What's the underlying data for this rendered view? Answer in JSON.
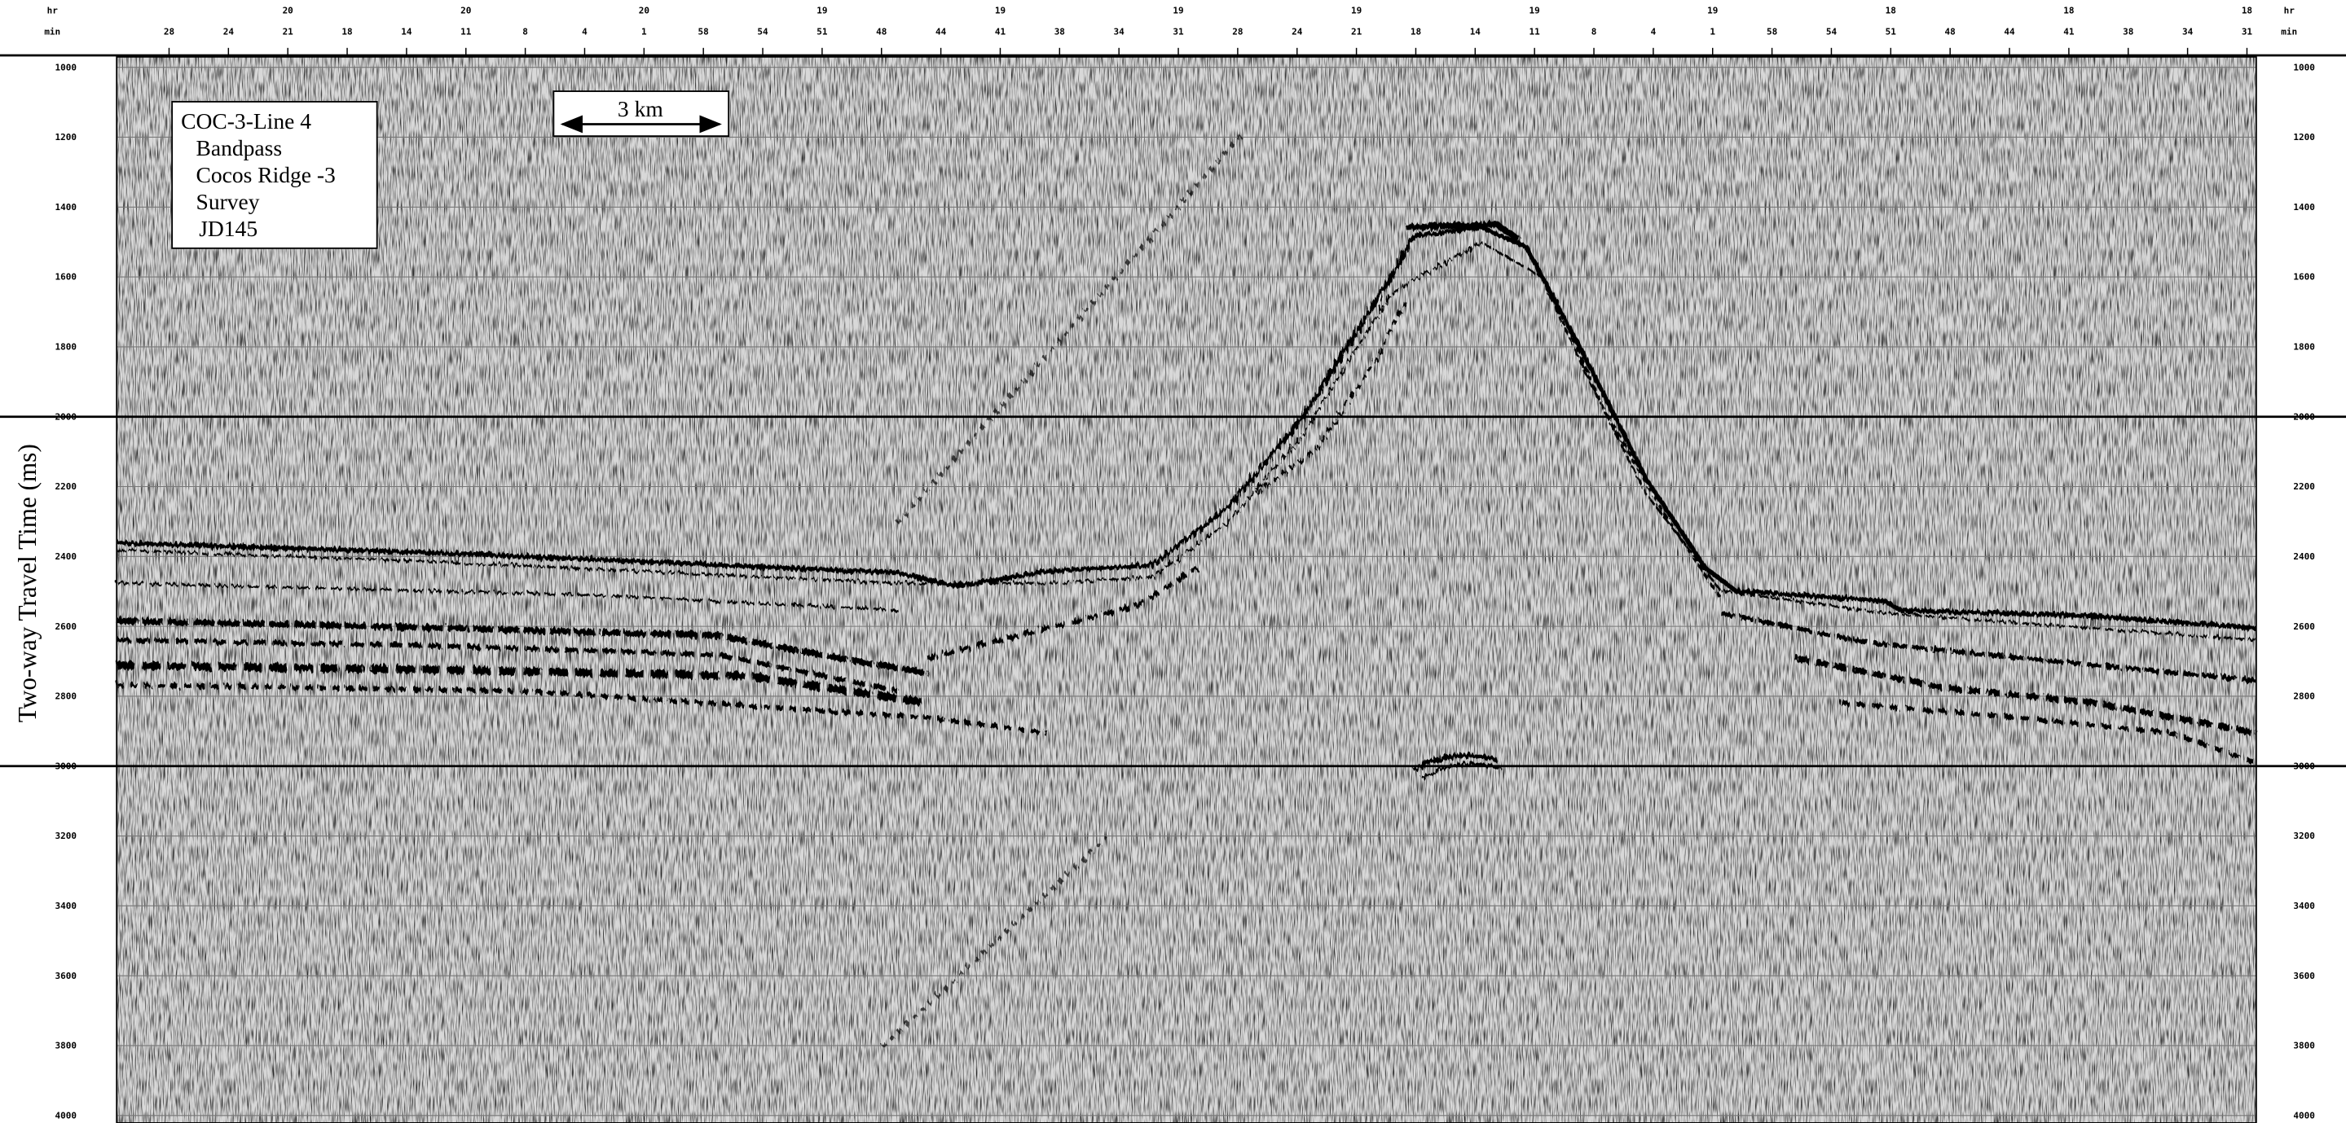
{
  "top_axis": {
    "hour_label": "hr",
    "minute_label": "min",
    "hours": [
      20,
      20,
      20,
      19,
      19,
      19,
      19,
      19,
      19,
      18,
      18,
      18
    ],
    "minutes": [
      28,
      24,
      21,
      18,
      14,
      11,
      8,
      4,
      1,
      58,
      54,
      51,
      48,
      44,
      41,
      38,
      34,
      31,
      28,
      24,
      21,
      18,
      14,
      11,
      8,
      4,
      1,
      58,
      54,
      51,
      48,
      44,
      41,
      38,
      34,
      31
    ]
  },
  "y_axis": {
    "label": "Two-way Travel Time (ms)",
    "ticks": [
      1000,
      1200,
      1400,
      1600,
      1800,
      2000,
      2200,
      2400,
      2600,
      2800,
      3000,
      3200,
      3400,
      3600,
      3800,
      4000
    ]
  },
  "legend": {
    "lines": [
      "COC-3-Line 4",
      "Bandpass",
      "Cocos Ridge -3",
      "Survey",
      "JD145"
    ]
  },
  "scale_bar": {
    "label": "3 km"
  }
}
